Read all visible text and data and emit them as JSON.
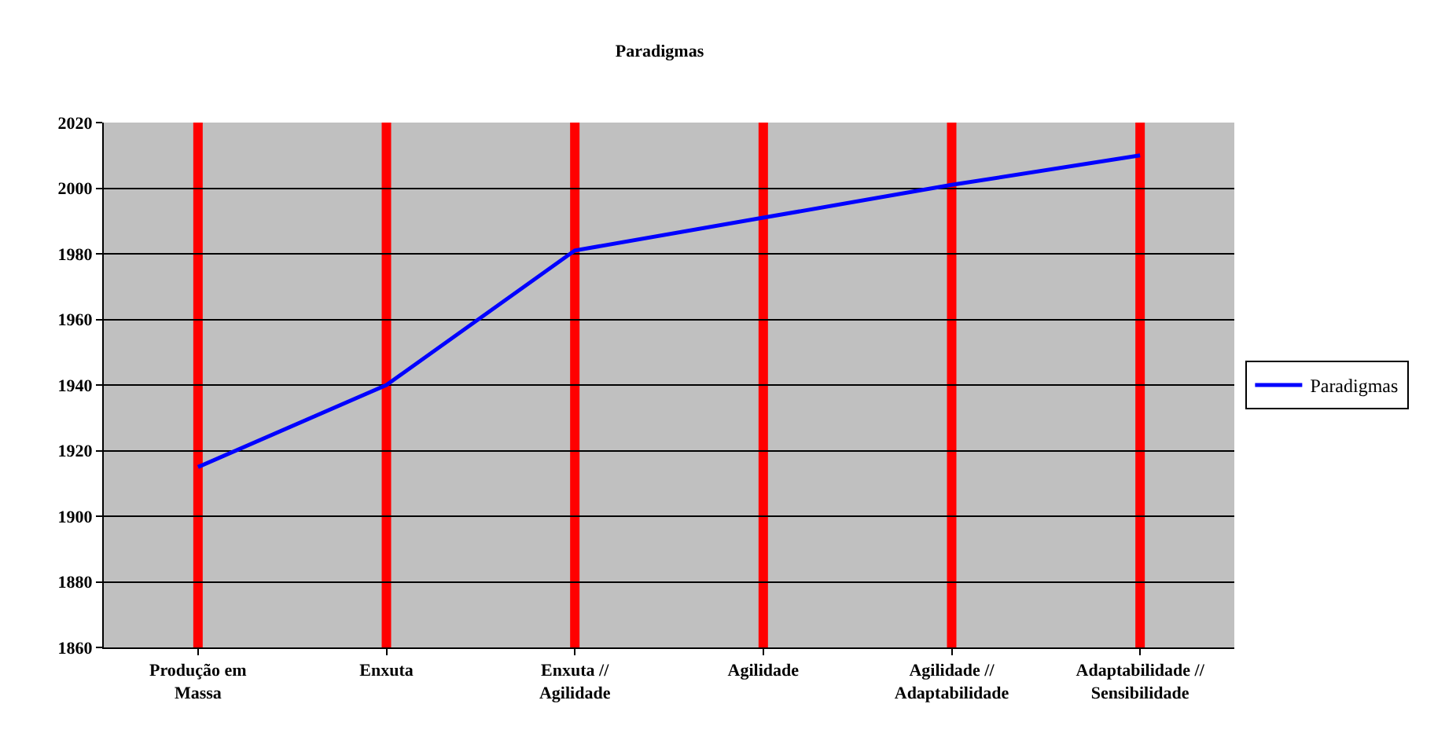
{
  "chart_data": {
    "type": "line",
    "title": "Paradigmas",
    "categories": [
      "Produção em Massa",
      "Enxuta",
      "Enxuta // Agilidade",
      "Agilidade",
      "Agilidade // Adaptabilidade",
      "Adaptabilidade // Sensibilidade"
    ],
    "series": [
      {
        "name": "Paradigmas",
        "color": "#0000ff",
        "values": [
          1915,
          1940,
          1981,
          1991,
          2001,
          2010
        ]
      }
    ],
    "ylim": [
      1860,
      2020
    ],
    "yticks": [
      1860,
      1880,
      1900,
      1920,
      1940,
      1960,
      1980,
      2000,
      2020
    ],
    "grid": "y",
    "legend": "right",
    "marker": "none",
    "line_style": "solid",
    "ref_lines": [
      {
        "axis": "x",
        "value": "Produção em Massa",
        "color": "#ff0000"
      },
      {
        "axis": "x",
        "value": "Enxuta",
        "color": "#ff0000"
      },
      {
        "axis": "x",
        "value": "Enxuta // Agilidade",
        "color": "#ff0000"
      },
      {
        "axis": "x",
        "value": "Agilidade",
        "color": "#ff0000"
      },
      {
        "axis": "x",
        "value": "Agilidade // Adaptabilidade",
        "color": "#ff0000"
      },
      {
        "axis": "x",
        "value": "Adaptabilidade // Sensibilidade",
        "color": "#ff0000"
      }
    ]
  }
}
